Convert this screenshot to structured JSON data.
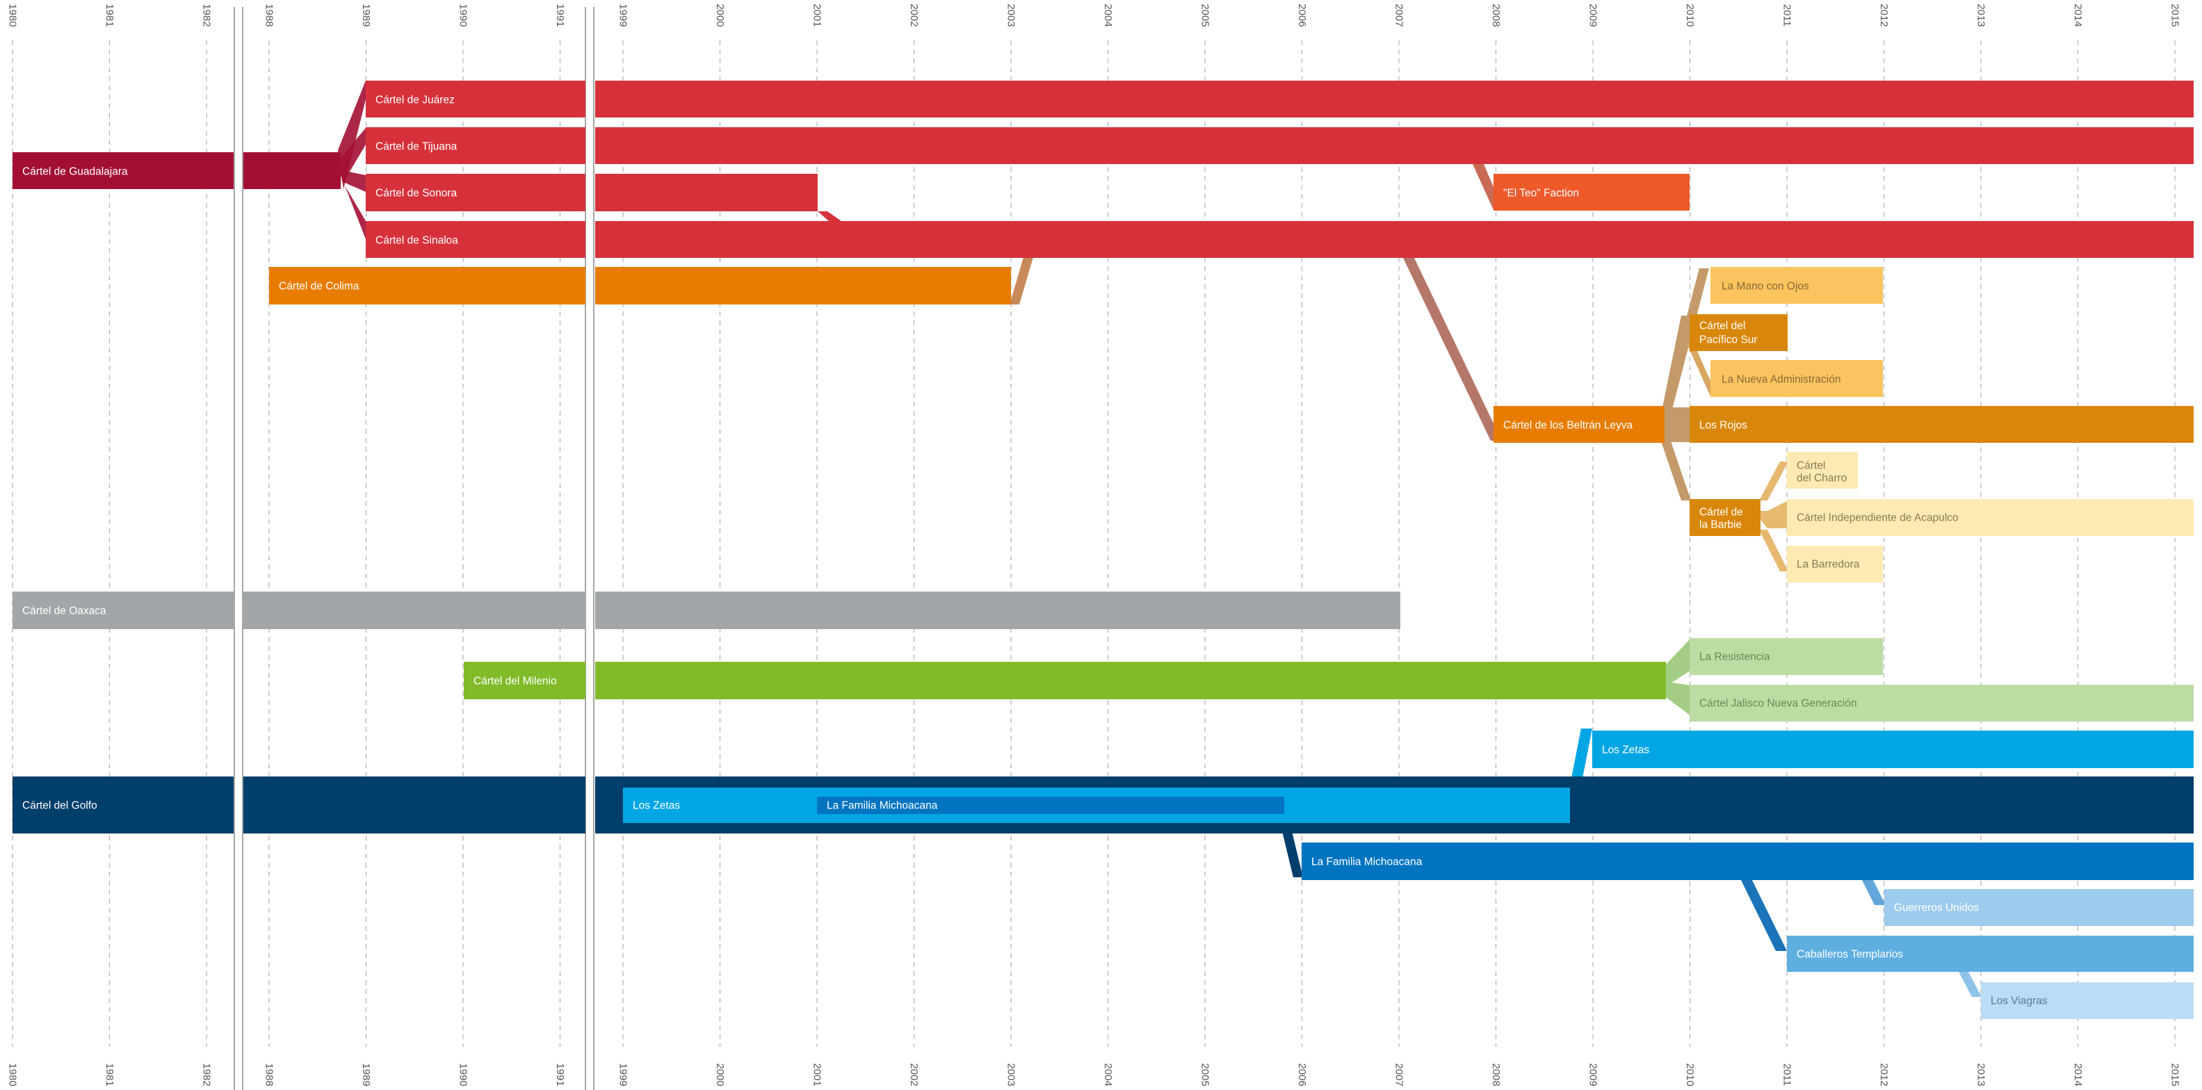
{
  "years": {
    "seg1": [
      "1980",
      "1981",
      "1982"
    ],
    "seg2": [
      "1988",
      "1989",
      "1990",
      "1991"
    ],
    "seg3": [
      "1999",
      "2000",
      "2001",
      "2002",
      "2003",
      "2004",
      "2005",
      "2006",
      "2007",
      "2008",
      "2009",
      "2010",
      "2011",
      "2012",
      "2013",
      "2014",
      "2015"
    ]
  },
  "colors": {
    "guadalajara": "#a30f33",
    "red": "#d6313b",
    "teo": "#ef5a2a",
    "orange": "#e77c00",
    "amber": "#d9870a",
    "light_amber": "#fcc45e",
    "pale_yellow": "#fdeab2",
    "gray": "#a2a6a8",
    "lime": "#82bb2a",
    "pale_green": "#bcdca4",
    "navy": "#003e6b",
    "cyan": "#00a6e4",
    "mid_blue": "#0074c1",
    "sky": "#5eaee0",
    "pale_sky": "#9ccbee",
    "paler_sky": "#b9ddf4"
  },
  "labels": {
    "guadalajara": "Cártel de Guadalajara",
    "juarez": "Cártel de Juárez",
    "tijuana": "Cártel de Tijuana",
    "sonora": "Cártel de Sonora",
    "sinaloa": "Cártel de Sinaloa",
    "teo": "\"El Teo\" Faction",
    "colima": "Cártel de Colima",
    "mano_ojos": "La Mano con Ojos",
    "pacifico_sur_1": "Cártel del",
    "pacifico_sur_2": "Pacífico Sur",
    "nueva_admin": "La Nueva Administración",
    "beltran": "Cártel de los Beltrán Leyva",
    "rojos": "Los Rojos",
    "charro_1": "Cártel",
    "charro_2": "del Charro",
    "barbie_1": "Cártel de",
    "barbie_2": "la Barbie",
    "acapulco": "Cártel Independiente de Acapulco",
    "barredora": "La Barredora",
    "oaxaca": "Cártel de Oaxaca",
    "milenio": "Cártel del Milenio",
    "resistencia": "La Resistencia",
    "cjng": "Cártel Jalisco Nueva Generación",
    "zetas_top": "Los Zetas",
    "golfo": "Cártel del Golfo",
    "zetas_inner": "Los Zetas",
    "familia_inner": "La Familia Michoacana",
    "familia": "La Familia Michoacana",
    "guerreros": "Guerreros Unidos",
    "templarios": "Caballeros Templarios",
    "viagras": "Los Viagras"
  }
}
